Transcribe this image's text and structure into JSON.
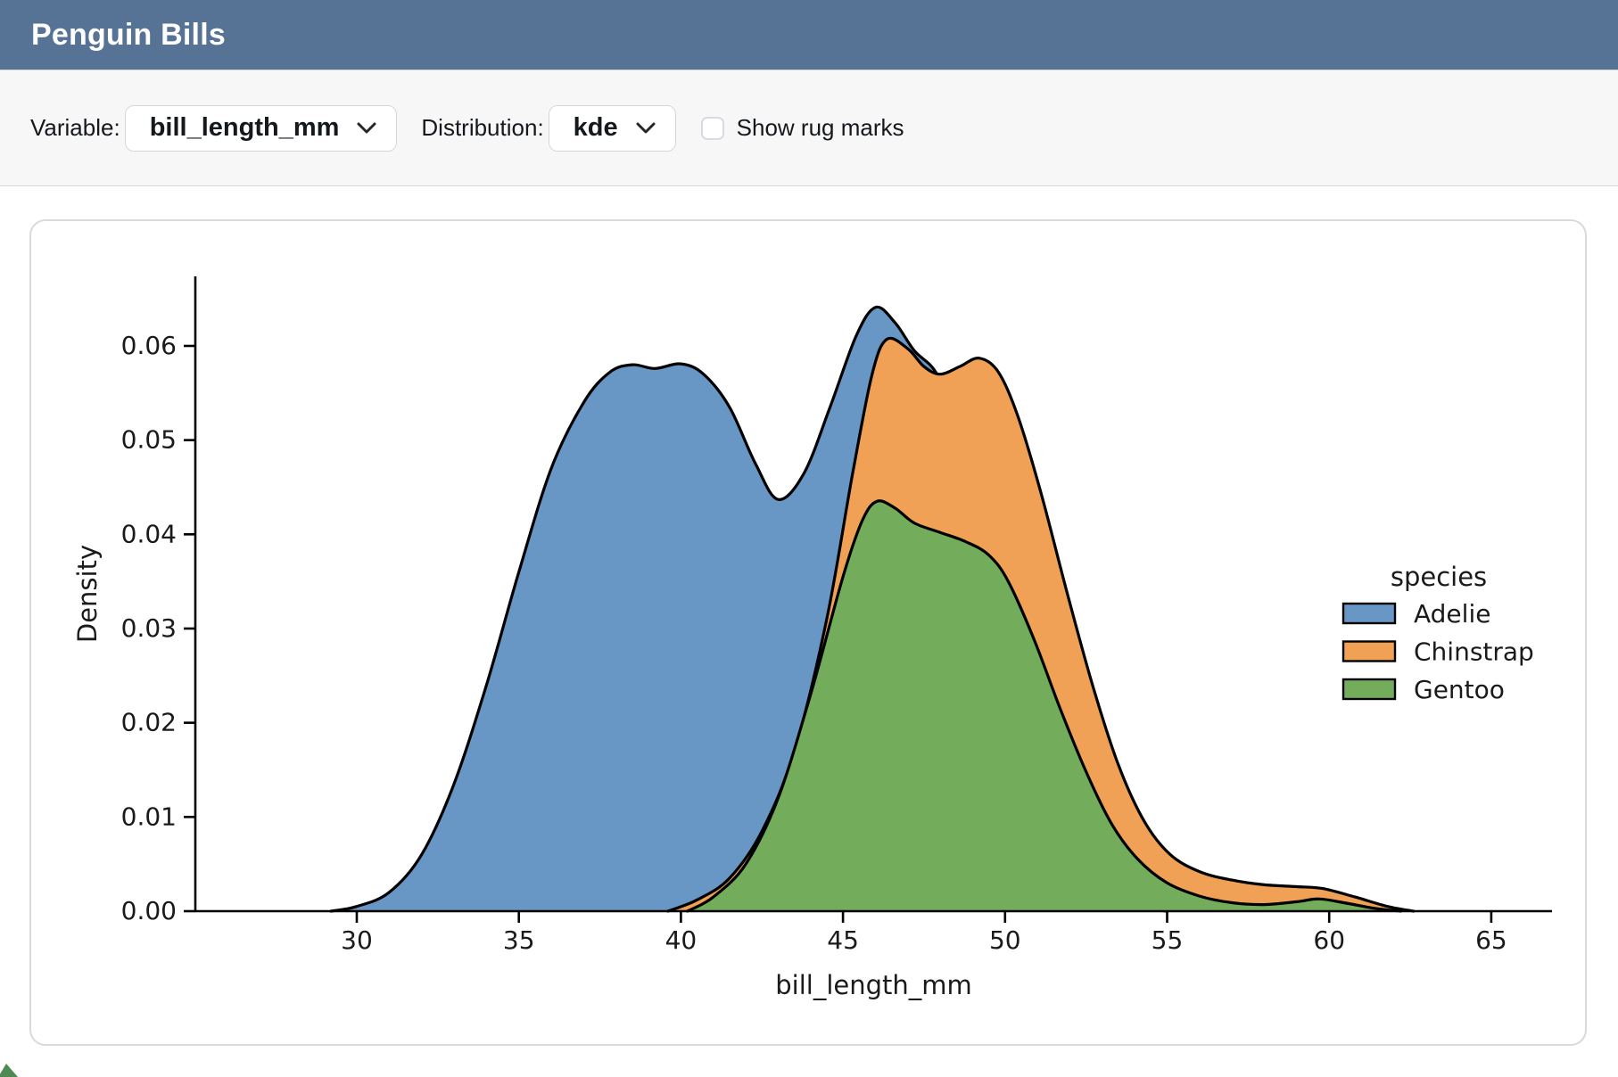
{
  "header": {
    "title": "Penguin Bills",
    "bg_color": "#567396"
  },
  "toolbar": {
    "variable_label": "Variable:",
    "variable_value": "bill_length_mm",
    "distribution_label": "Distribution:",
    "distribution_value": "kde",
    "rug_label": "Show rug marks",
    "rug_checked": false
  },
  "chart_data": {
    "type": "area",
    "kind": "kde-density",
    "title": "",
    "xlabel": "bill_length_mm",
    "ylabel": "Density",
    "xlim": [
      25.0,
      66.9
    ],
    "ylim": [
      0,
      0.0674
    ],
    "xticks": [
      30,
      35,
      40,
      45,
      50,
      55,
      60,
      65
    ],
    "yticks": [
      0.0,
      0.01,
      0.02,
      0.03,
      0.04,
      0.05,
      0.06
    ],
    "grid": false,
    "text_color": "#1a1a1a",
    "line_color": "#000000",
    "legend": {
      "title": "species",
      "position": "center-right",
      "entries": [
        {
          "label": "Adelie",
          "color": "#6897C6"
        },
        {
          "label": "Chinstrap",
          "color": "#F0A156"
        },
        {
          "label": "Gentoo",
          "color": "#73AD5C"
        }
      ]
    },
    "series": [
      {
        "name": "Adelie",
        "color": "#6897C6",
        "points": [
          [
            29.2,
            0
          ],
          [
            30,
            0.0005
          ],
          [
            31,
            0.002
          ],
          [
            32,
            0.006
          ],
          [
            33,
            0.0135
          ],
          [
            34,
            0.024
          ],
          [
            35,
            0.036
          ],
          [
            36,
            0.047
          ],
          [
            37,
            0.054
          ],
          [
            37.8,
            0.0572
          ],
          [
            38.5,
            0.058
          ],
          [
            39.2,
            0.0576
          ],
          [
            40,
            0.0581
          ],
          [
            40.7,
            0.057
          ],
          [
            41.5,
            0.0535
          ],
          [
            42.3,
            0.0475
          ],
          [
            43,
            0.0437
          ],
          [
            43.8,
            0.0465
          ],
          [
            44.6,
            0.0535
          ],
          [
            45.4,
            0.061
          ],
          [
            46,
            0.0641
          ],
          [
            46.6,
            0.0625
          ],
          [
            47.2,
            0.0595
          ],
          [
            47.9,
            0.057
          ],
          [
            48.6,
            0.051
          ],
          [
            49.4,
            0.0405
          ],
          [
            50.2,
            0.0275
          ],
          [
            51,
            0.0155
          ],
          [
            52,
            0.006
          ],
          [
            53,
            0.0018
          ],
          [
            54,
            0.0004
          ],
          [
            55,
            0
          ]
        ]
      },
      {
        "name": "Chinstrap",
        "color": "#F0A156",
        "points": [
          [
            39.6,
            0
          ],
          [
            40.5,
            0.0012
          ],
          [
            41.5,
            0.0035
          ],
          [
            42.5,
            0.0085
          ],
          [
            43.5,
            0.017
          ],
          [
            44.5,
            0.031
          ],
          [
            45.3,
            0.0465
          ],
          [
            45.9,
            0.057
          ],
          [
            46.35,
            0.0607
          ],
          [
            47,
            0.0597
          ],
          [
            47.5,
            0.0578
          ],
          [
            48,
            0.057
          ],
          [
            48.6,
            0.0578
          ],
          [
            49.2,
            0.0587
          ],
          [
            49.8,
            0.0572
          ],
          [
            50.4,
            0.0525
          ],
          [
            51.1,
            0.0445
          ],
          [
            51.9,
            0.034
          ],
          [
            52.7,
            0.024
          ],
          [
            53.5,
            0.0155
          ],
          [
            54.3,
            0.0095
          ],
          [
            55.1,
            0.006
          ],
          [
            56,
            0.0042
          ],
          [
            57,
            0.0033
          ],
          [
            58,
            0.0028
          ],
          [
            59,
            0.0026
          ],
          [
            59.8,
            0.0024
          ],
          [
            60.8,
            0.0015
          ],
          [
            61.8,
            0.0005
          ],
          [
            62.6,
            0
          ]
        ]
      },
      {
        "name": "Gentoo",
        "color": "#73AD5C",
        "points": [
          [
            40.2,
            0
          ],
          [
            41,
            0.0015
          ],
          [
            42,
            0.005
          ],
          [
            43,
            0.012
          ],
          [
            44,
            0.023
          ],
          [
            45,
            0.0355
          ],
          [
            45.6,
            0.0415
          ],
          [
            46.05,
            0.0435
          ],
          [
            46.6,
            0.0428
          ],
          [
            47.2,
            0.0412
          ],
          [
            48,
            0.0402
          ],
          [
            48.8,
            0.0392
          ],
          [
            49.5,
            0.0378
          ],
          [
            50.1,
            0.035
          ],
          [
            50.9,
            0.0288
          ],
          [
            51.7,
            0.0215
          ],
          [
            52.5,
            0.0148
          ],
          [
            53.3,
            0.0092
          ],
          [
            54.1,
            0.0055
          ],
          [
            55,
            0.003
          ],
          [
            56,
            0.0016
          ],
          [
            57,
            0.0009
          ],
          [
            58,
            0.0007
          ],
          [
            59,
            0.001
          ],
          [
            59.7,
            0.0013
          ],
          [
            60.6,
            0.0008
          ],
          [
            61.4,
            0.0003
          ],
          [
            62.2,
            0
          ]
        ]
      }
    ]
  }
}
